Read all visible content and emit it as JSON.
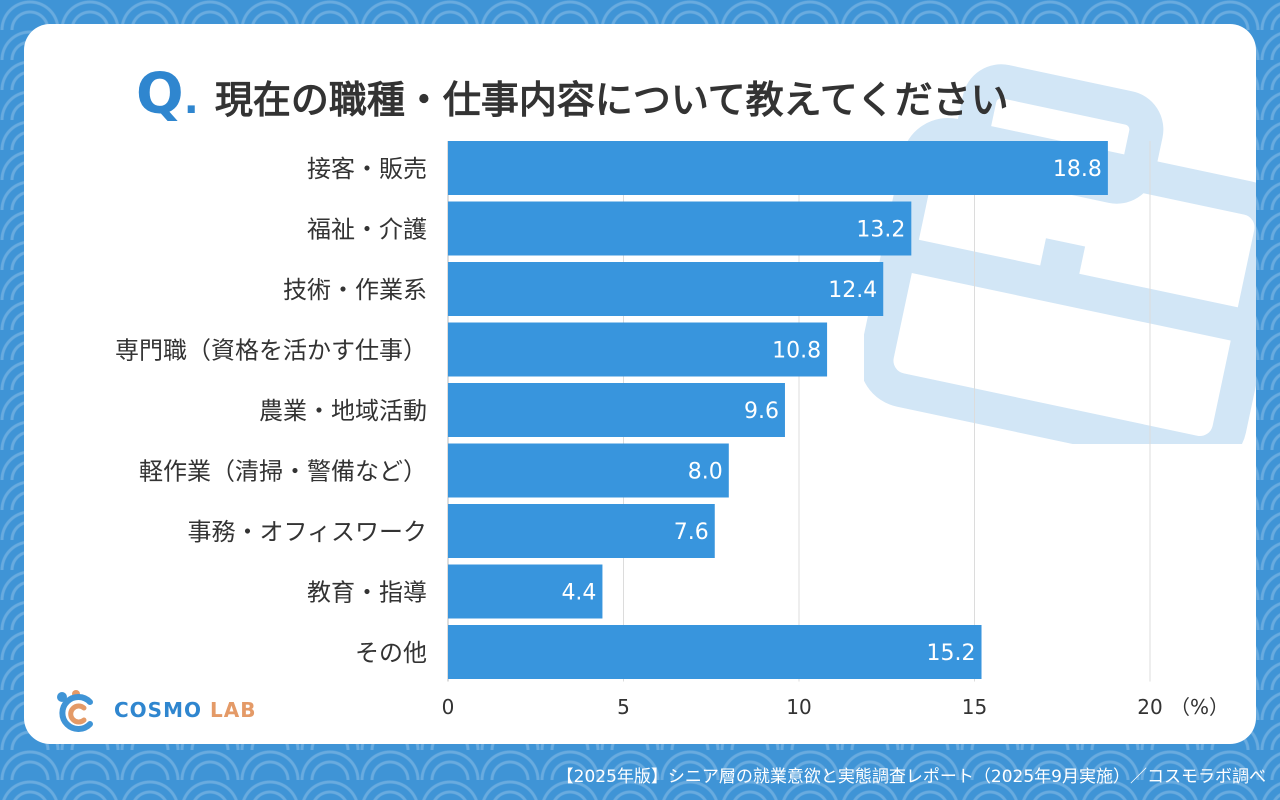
{
  "title": {
    "prefix": "Q",
    "dot": ".",
    "text": "現在の職種・仕事内容について教えてください"
  },
  "chart_data": {
    "type": "bar",
    "orientation": "horizontal",
    "categories": [
      "接客・販売",
      "福祉・介護",
      "技術・作業系",
      "専門職（資格を活かす仕事）",
      "農業・地域活動",
      "軽作業（清掃・警備など）",
      "事務・オフィスワーク",
      "教育・指導",
      "その他"
    ],
    "values": [
      18.8,
      13.2,
      12.4,
      10.8,
      9.6,
      8.0,
      7.6,
      4.4,
      15.2
    ],
    "value_labels": [
      "18.8",
      "13.2",
      "12.4",
      "10.8",
      "9.6",
      "8.0",
      "7.6",
      "4.4",
      "15.2"
    ],
    "xticks": [
      0,
      5,
      10,
      15,
      20
    ],
    "xlim": [
      0,
      20
    ],
    "unit_label": "（%）",
    "grid": true,
    "bar_color": "#3895dd"
  },
  "logo": {
    "name_part1": "COSMO",
    "name_part2": "LAB"
  },
  "footer": {
    "source": "【2025年版】シニア層の就業意欲と実態調査レポート（2025年9月実施）／コスモラボ調べ"
  }
}
